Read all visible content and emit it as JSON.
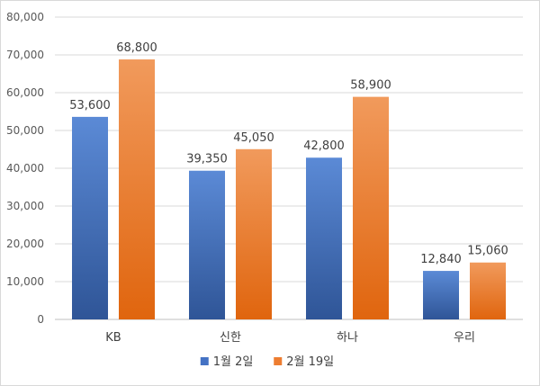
{
  "chart_data": {
    "type": "bar",
    "categories": [
      "KB",
      "신한",
      "하나",
      "우리"
    ],
    "series": [
      {
        "name": "1월 2일",
        "values": [
          53600,
          39350,
          42800,
          12840
        ],
        "labels": [
          "53,600",
          "39,350",
          "42,800",
          "12,840"
        ],
        "color": "#4472C4",
        "color_light": "#5B8AD6",
        "color_dark": "#2F5597"
      },
      {
        "name": "2월 19일",
        "values": [
          68800,
          45050,
          58900,
          15060
        ],
        "labels": [
          "68,800",
          "45,050",
          "58,900",
          "15,060"
        ],
        "color": "#ED7D31",
        "color_light": "#F19A5C",
        "color_dark": "#E0650E"
      }
    ],
    "ylim": [
      0,
      80000
    ],
    "yticks": [
      0,
      10000,
      20000,
      30000,
      40000,
      50000,
      60000,
      70000,
      80000
    ],
    "ytick_labels": [
      "0",
      "10,000",
      "20,000",
      "30,000",
      "40,000",
      "50,000",
      "60,000",
      "70,000",
      "80,000"
    ],
    "grid": true,
    "legend_position": "bottom"
  }
}
